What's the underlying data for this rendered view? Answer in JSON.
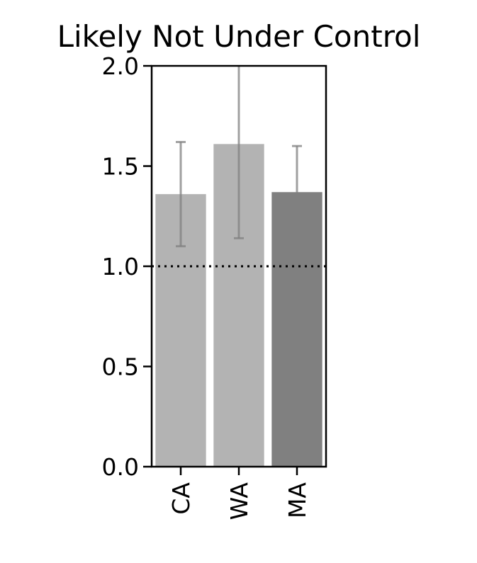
{
  "chart_data": {
    "type": "bar",
    "title": "Likely Not Under Control",
    "xlabel": "",
    "ylabel": "",
    "categories": [
      "CA",
      "WA",
      "MA"
    ],
    "values": [
      1.36,
      1.61,
      1.37
    ],
    "error_low": [
      1.1,
      1.14,
      1.15
    ],
    "error_high": [
      1.62,
      2.08,
      1.6
    ],
    "bar_colors": [
      "#b3b3b3",
      "#b3b3b3",
      "#808080"
    ],
    "error_color": "#808080",
    "ylim": [
      0,
      2.0
    ],
    "yticks": [
      "0.0",
      "0.5",
      "1.0",
      "1.5",
      "2.0"
    ],
    "ytick_values": [
      0,
      0.5,
      1.0,
      1.5,
      2.0
    ],
    "reference_line": {
      "y": 1.0,
      "style": "dotted",
      "color": "#000000"
    },
    "grid": false,
    "legend": "none"
  }
}
